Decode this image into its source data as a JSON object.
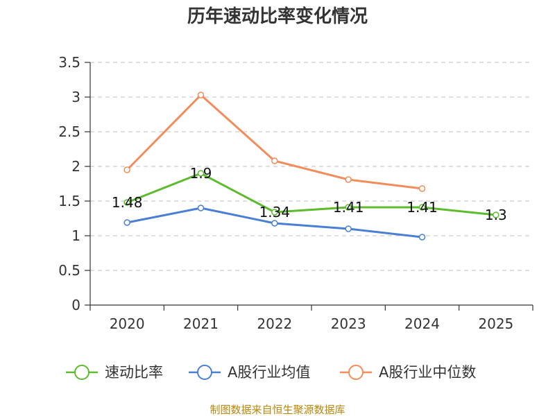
{
  "chart_data": {
    "type": "line",
    "title": "历年速动比率变化情况",
    "categories": [
      "2020",
      "2021",
      "2022",
      "2023",
      "2024",
      "2025"
    ],
    "ylim": [
      0,
      3.5
    ],
    "yticks": [
      "0",
      "0.5",
      "1",
      "1.5",
      "2",
      "2.5",
      "3",
      "3.5"
    ],
    "grid": true,
    "legend_position": "bottom",
    "series": [
      {
        "name": "速动比率",
        "color": "#5dbb2e",
        "values": [
          1.48,
          1.9,
          1.34,
          1.41,
          1.41,
          1.3
        ],
        "labels": [
          "1.48",
          "1.9",
          "1.34",
          "1.41",
          "1.41",
          "1.3"
        ]
      },
      {
        "name": "A股行业均值",
        "color": "#4a7fd6",
        "values": [
          1.19,
          1.4,
          1.18,
          1.1,
          0.98,
          null
        ],
        "labels": []
      },
      {
        "name": "A股行业中位数",
        "color": "#f28c5a",
        "values": [
          1.95,
          3.03,
          2.08,
          1.81,
          1.68,
          null
        ],
        "labels": []
      }
    ]
  },
  "source": "制图数据来自恒生聚源数据库"
}
